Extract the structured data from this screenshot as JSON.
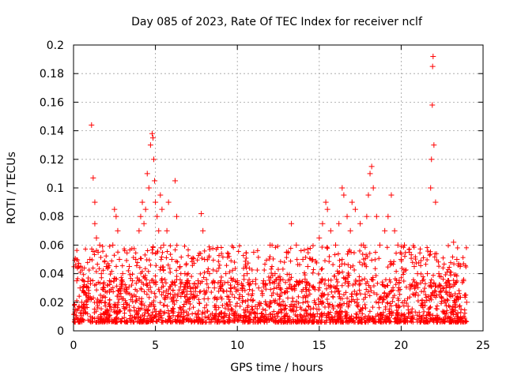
{
  "chart_data": {
    "type": "scatter",
    "title": "Day 085 of 2023, Rate Of TEC Index for receiver nclf",
    "xlabel": "GPS time / hours",
    "ylabel": "ROTI / TECUs",
    "xlim": [
      0,
      25
    ],
    "ylim": [
      0,
      0.2
    ],
    "x_ticks": [
      0,
      5,
      10,
      15,
      20,
      25
    ],
    "y_ticks": [
      0,
      0.02,
      0.04,
      0.06,
      0.08,
      0.1,
      0.12,
      0.14,
      0.16,
      0.18,
      0.2
    ],
    "x_tick_labels": [
      "0",
      "5",
      "10",
      "15",
      "20",
      "25"
    ],
    "y_tick_labels": [
      "0",
      "0.02",
      "0.04",
      "0.06",
      "0.08",
      "0.1",
      "0.12",
      "0.14",
      "0.16",
      "0.18",
      "0.2"
    ],
    "grid": true,
    "marker": "+",
    "color": "#ff0000",
    "series": [
      {
        "name": "ROTI",
        "points": [
          [
            0.1,
            0.015
          ],
          [
            0.2,
            0.035
          ],
          [
            0.3,
            0.045
          ],
          [
            0.4,
            0.03
          ],
          [
            0.5,
            0.02
          ],
          [
            0.6,
            0.012
          ],
          [
            0.8,
            0.025
          ],
          [
            1.0,
            0.05
          ],
          [
            1.1,
            0.144
          ],
          [
            1.2,
            0.107
          ],
          [
            1.3,
            0.09
          ],
          [
            1.3,
            0.075
          ],
          [
            1.4,
            0.065
          ],
          [
            1.5,
            0.055
          ],
          [
            1.6,
            0.06
          ],
          [
            1.7,
            0.04
          ],
          [
            1.8,
            0.03
          ],
          [
            2.0,
            0.045
          ],
          [
            2.2,
            0.035
          ],
          [
            2.4,
            0.06
          ],
          [
            2.5,
            0.085
          ],
          [
            2.6,
            0.08
          ],
          [
            2.7,
            0.07
          ],
          [
            2.8,
            0.05
          ],
          [
            3.0,
            0.04
          ],
          [
            3.2,
            0.03
          ],
          [
            3.4,
            0.045
          ],
          [
            3.6,
            0.035
          ],
          [
            3.8,
            0.05
          ],
          [
            4.0,
            0.07
          ],
          [
            4.1,
            0.08
          ],
          [
            4.2,
            0.09
          ],
          [
            4.3,
            0.075
          ],
          [
            4.4,
            0.085
          ],
          [
            4.5,
            0.11
          ],
          [
            4.6,
            0.1
          ],
          [
            4.7,
            0.13
          ],
          [
            4.8,
            0.138
          ],
          [
            4.85,
            0.135
          ],
          [
            4.9,
            0.12
          ],
          [
            4.95,
            0.105
          ],
          [
            5.0,
            0.09
          ],
          [
            5.1,
            0.08
          ],
          [
            5.2,
            0.07
          ],
          [
            5.3,
            0.095
          ],
          [
            5.4,
            0.085
          ],
          [
            5.5,
            0.06
          ],
          [
            5.7,
            0.07
          ],
          [
            5.8,
            0.09
          ],
          [
            6.0,
            0.05
          ],
          [
            6.2,
            0.105
          ],
          [
            6.3,
            0.08
          ],
          [
            6.5,
            0.045
          ],
          [
            6.8,
            0.04
          ],
          [
            7.0,
            0.035
          ],
          [
            7.3,
            0.03
          ],
          [
            7.6,
            0.035
          ],
          [
            7.8,
            0.082
          ],
          [
            7.9,
            0.07
          ],
          [
            8.0,
            0.05
          ],
          [
            8.3,
            0.04
          ],
          [
            8.6,
            0.03
          ],
          [
            9.0,
            0.035
          ],
          [
            9.3,
            0.04
          ],
          [
            9.6,
            0.03
          ],
          [
            10.0,
            0.035
          ],
          [
            10.3,
            0.03
          ],
          [
            10.6,
            0.04
          ],
          [
            11.0,
            0.055
          ],
          [
            11.3,
            0.03
          ],
          [
            11.6,
            0.035
          ],
          [
            12.0,
            0.06
          ],
          [
            12.3,
            0.04
          ],
          [
            12.6,
            0.03
          ],
          [
            13.0,
            0.055
          ],
          [
            13.3,
            0.075
          ],
          [
            13.6,
            0.06
          ],
          [
            14.0,
            0.05
          ],
          [
            14.3,
            0.045
          ],
          [
            14.6,
            0.05
          ],
          [
            15.0,
            0.065
          ],
          [
            15.2,
            0.075
          ],
          [
            15.4,
            0.09
          ],
          [
            15.5,
            0.085
          ],
          [
            15.7,
            0.07
          ],
          [
            16.0,
            0.06
          ],
          [
            16.2,
            0.075
          ],
          [
            16.4,
            0.1
          ],
          [
            16.5,
            0.095
          ],
          [
            16.7,
            0.08
          ],
          [
            16.9,
            0.07
          ],
          [
            17.0,
            0.09
          ],
          [
            17.2,
            0.085
          ],
          [
            17.5,
            0.075
          ],
          [
            17.7,
            0.06
          ],
          [
            17.9,
            0.08
          ],
          [
            18.0,
            0.095
          ],
          [
            18.1,
            0.11
          ],
          [
            18.2,
            0.115
          ],
          [
            18.3,
            0.1
          ],
          [
            18.5,
            0.08
          ],
          [
            18.7,
            0.06
          ],
          [
            19.0,
            0.07
          ],
          [
            19.2,
            0.08
          ],
          [
            19.4,
            0.095
          ],
          [
            19.6,
            0.07
          ],
          [
            19.8,
            0.06
          ],
          [
            20.0,
            0.05
          ],
          [
            20.2,
            0.06
          ],
          [
            20.5,
            0.055
          ],
          [
            20.8,
            0.045
          ],
          [
            21.0,
            0.04
          ],
          [
            21.3,
            0.035
          ],
          [
            21.6,
            0.04
          ],
          [
            21.8,
            0.1
          ],
          [
            21.85,
            0.12
          ],
          [
            21.9,
            0.158
          ],
          [
            21.92,
            0.185
          ],
          [
            21.95,
            0.192
          ],
          [
            22.0,
            0.13
          ],
          [
            22.1,
            0.09
          ],
          [
            22.3,
            0.04
          ],
          [
            22.6,
            0.03
          ],
          [
            22.9,
            0.035
          ],
          [
            23.2,
            0.062
          ],
          [
            23.4,
            0.05
          ],
          [
            23.6,
            0.045
          ],
          [
            23.8,
            0.035
          ],
          [
            23.9,
            0.025
          ],
          [
            24.0,
            0.02
          ]
        ]
      }
    ]
  }
}
